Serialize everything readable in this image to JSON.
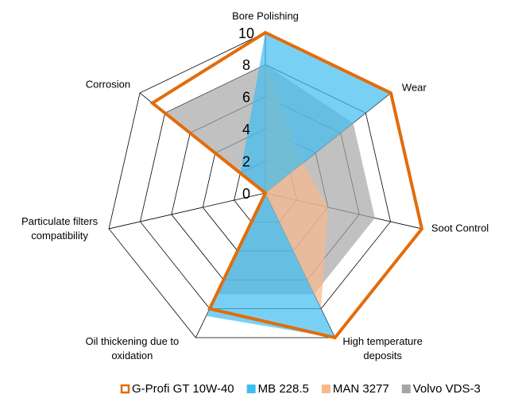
{
  "chart_data": {
    "type": "radar",
    "categories": [
      "Bore Polishing",
      "Wear",
      "Soot Control",
      "High temperature deposits",
      "Oil thickening due to oxidation",
      "Particulate filters compatibility",
      "Corrosion"
    ],
    "series": [
      {
        "name": "G-Profi GT 10W-40",
        "color": "#e36c0a",
        "values": [
          10,
          10,
          10,
          10,
          8,
          0,
          9
        ]
      },
      {
        "name": "MB 228.5",
        "color": "#3ebef0",
        "values": [
          10,
          10,
          0,
          10,
          8.5,
          0,
          2
        ]
      },
      {
        "name": "MAN 3277",
        "color": "#f7b88a",
        "values": [
          8,
          3,
          4,
          8,
          0,
          0,
          0
        ]
      },
      {
        "name": "Volvo VDS-3",
        "color": "#a6a6a6",
        "values": [
          8,
          7,
          7,
          7,
          7,
          0,
          8
        ]
      }
    ],
    "ylim": [
      0,
      10
    ],
    "yticks": [
      0,
      2,
      4,
      6,
      8,
      10
    ],
    "grid": true
  }
}
